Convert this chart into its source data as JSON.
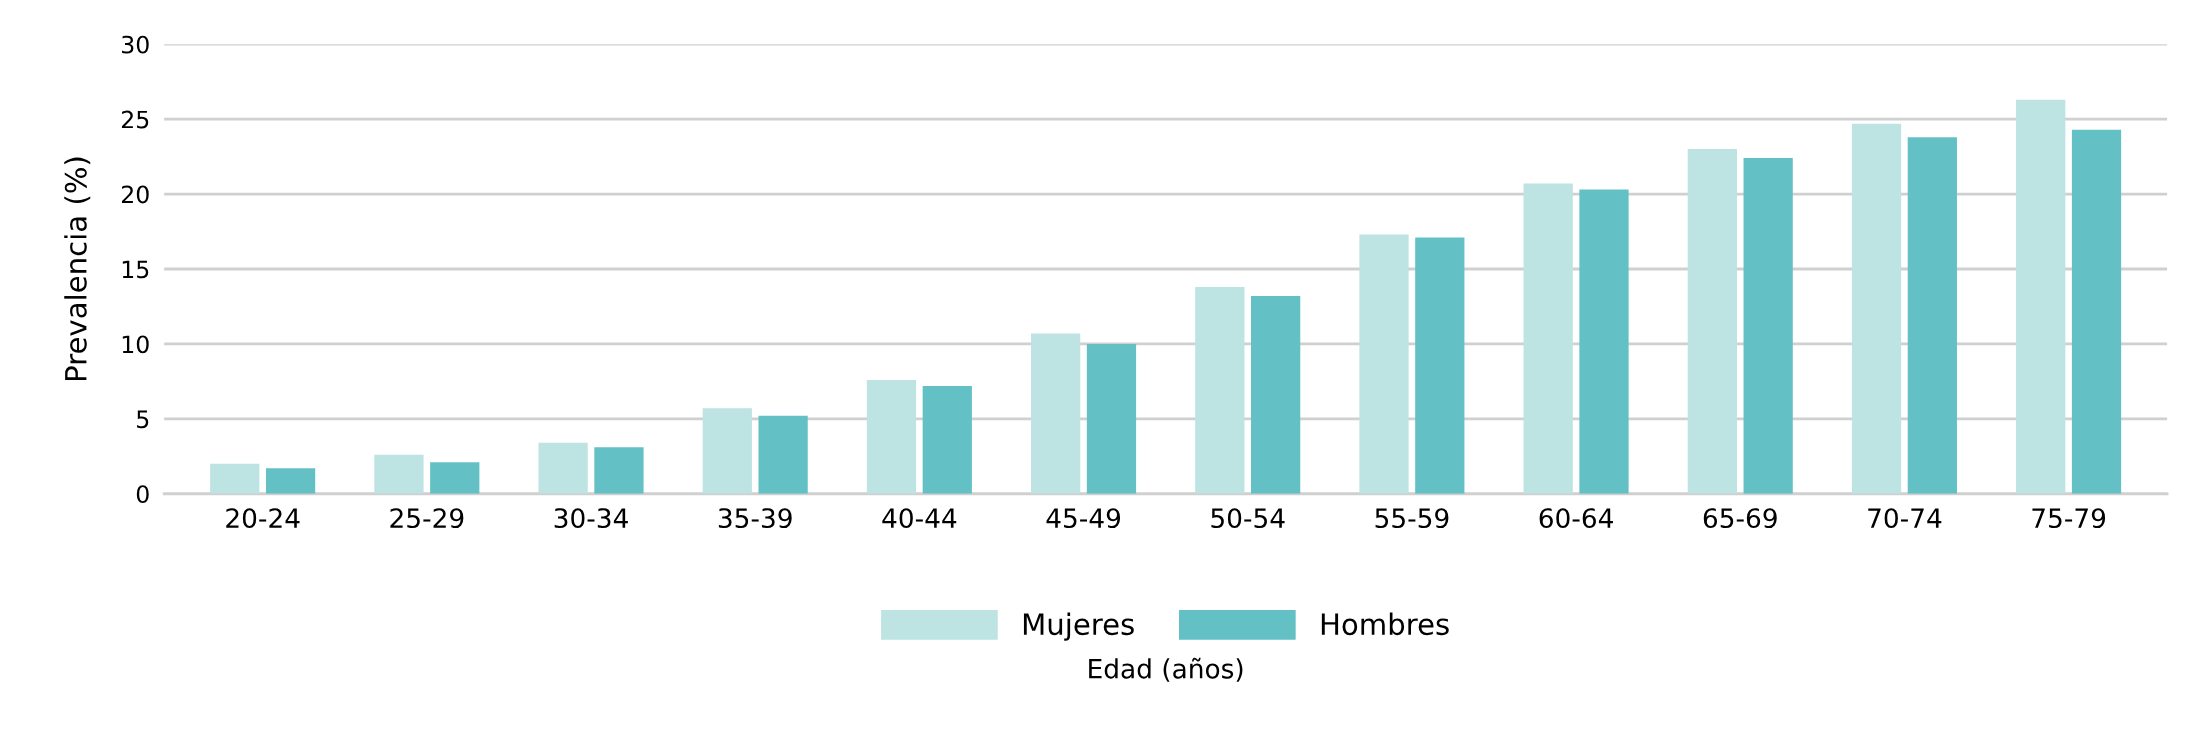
{
  "chart_data": {
    "type": "bar",
    "xlabel": "Edad (años)",
    "ylabel": "Prevalencia (%)",
    "categories": [
      "20-24",
      "25-29",
      "30-34",
      "35-39",
      "40-44",
      "45-49",
      "50-54",
      "55-59",
      "60-64",
      "65-69",
      "70-74",
      "75-79"
    ],
    "series": [
      {
        "name": "Mujeres",
        "color": "#bde3e3",
        "values": [
          2.0,
          2.6,
          3.4,
          5.7,
          7.6,
          10.7,
          13.8,
          17.3,
          20.7,
          23.0,
          24.7,
          26.3
        ]
      },
      {
        "name": "Hombres",
        "color": "#63c1c6",
        "values": [
          1.7,
          2.1,
          3.1,
          5.2,
          7.2,
          10.0,
          13.2,
          17.1,
          20.3,
          22.4,
          23.8,
          24.3
        ]
      }
    ],
    "ylim": [
      0,
      30
    ],
    "yticks": [
      0,
      5,
      10,
      15,
      20,
      25,
      30
    ],
    "grid": "y",
    "legend": "bottom"
  }
}
